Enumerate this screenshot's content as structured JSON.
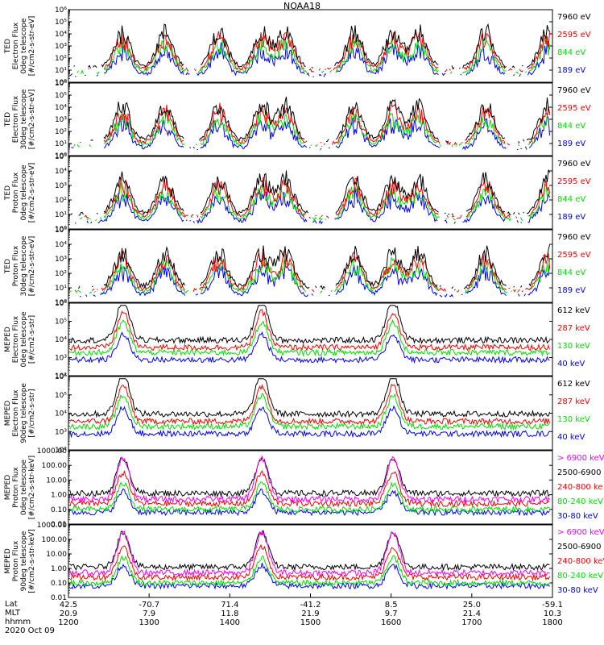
{
  "title": "NOAA18",
  "date_label": "2020 Oct 09",
  "colors": {
    "black": "#000000",
    "red": "#ff0000",
    "green": "#00e000",
    "blue": "#0000ff",
    "magenta": "#ff00ff"
  },
  "chart_data": [
    {
      "type": "line",
      "ylabel": [
        "TED",
        "Electron Flux",
        "0deg telescope",
        "[#/cm2-s-str-eV]"
      ],
      "scale": "log",
      "ylim": [
        1,
        1000000
      ],
      "yticks": [
        "10⁰",
        "10¹",
        "10²",
        "10³",
        "10⁴",
        "10⁵",
        "10⁶"
      ],
      "series": [
        {
          "name": "7960 eV",
          "color": "#000000"
        },
        {
          "name": "2595 eV",
          "color": "#ff0000"
        },
        {
          "name": "844 eV",
          "color": "#00e000"
        },
        {
          "name": "189 eV",
          "color": "#0000ff"
        }
      ]
    },
    {
      "type": "line",
      "ylabel": [
        "TED",
        "Electron Flux",
        "30deg telescope",
        "[#/cm2-s-str-eV]"
      ],
      "scale": "log",
      "ylim": [
        1,
        1000000
      ],
      "yticks": [
        "10⁰",
        "10¹",
        "10²",
        "10³",
        "10⁴",
        "10⁵",
        "10⁶"
      ],
      "series": [
        {
          "name": "7960 eV",
          "color": "#000000"
        },
        {
          "name": "2595 eV",
          "color": "#ff0000"
        },
        {
          "name": "844 eV",
          "color": "#00e000"
        },
        {
          "name": "189 eV",
          "color": "#0000ff"
        }
      ]
    },
    {
      "type": "line",
      "ylabel": [
        "TED",
        "Proton Flux",
        "0deg telescope",
        "[#/cm2-s-str-eV]"
      ],
      "scale": "log",
      "ylim": [
        1,
        100000
      ],
      "yticks": [
        "10⁰",
        "10¹",
        "10²",
        "10³",
        "10⁴",
        "10⁵"
      ],
      "series": [
        {
          "name": "7960 eV",
          "color": "#000000"
        },
        {
          "name": "2595 eV",
          "color": "#ff0000"
        },
        {
          "name": "844 eV",
          "color": "#00e000"
        },
        {
          "name": "189 eV",
          "color": "#0000ff"
        }
      ]
    },
    {
      "type": "line",
      "ylabel": [
        "TED",
        "Proton Flux",
        "30deg telescope",
        "[#/cm2-s-str-eV]"
      ],
      "scale": "log",
      "ylim": [
        1,
        100000
      ],
      "yticks": [
        "10⁰",
        "10¹",
        "10²",
        "10³",
        "10⁴",
        "10⁵"
      ],
      "series": [
        {
          "name": "7960 eV",
          "color": "#000000"
        },
        {
          "name": "2595 eV",
          "color": "#ff0000"
        },
        {
          "name": "844 eV",
          "color": "#00e000"
        },
        {
          "name": "189 eV",
          "color": "#0000ff"
        }
      ]
    },
    {
      "type": "line",
      "ylabel": [
        "MEPED",
        "Electron Flux",
        "0deg telescope",
        "[#/cm2-s-str]"
      ],
      "scale": "log",
      "ylim": [
        100,
        1000000
      ],
      "yticks": [
        "10²",
        "10³",
        "10⁴",
        "10⁵",
        "10⁶"
      ],
      "series": [
        {
          "name": "612 keV",
          "color": "#000000"
        },
        {
          "name": "287 keV",
          "color": "#ff0000"
        },
        {
          "name": "130 keV",
          "color": "#00e000"
        },
        {
          "name": "40 keV",
          "color": "#0000ff"
        }
      ]
    },
    {
      "type": "line",
      "ylabel": [
        "MEPED",
        "Electron Flux",
        "90deg telescope",
        "[#/cm2-s-str]"
      ],
      "scale": "log",
      "ylim": [
        100,
        1000000
      ],
      "yticks": [
        "10²",
        "10³",
        "10⁴",
        "10⁵",
        "10⁶"
      ],
      "series": [
        {
          "name": "612 keV",
          "color": "#000000"
        },
        {
          "name": "287 keV",
          "color": "#ff0000"
        },
        {
          "name": "130 keV",
          "color": "#00e000"
        },
        {
          "name": "40 keV",
          "color": "#0000ff"
        }
      ]
    },
    {
      "type": "line",
      "ylabel": [
        "MEPED",
        "Proton Flux",
        "0deg telescope",
        "[#/cm2-s-str-keV]"
      ],
      "scale": "log",
      "ylim": [
        0.01,
        1000
      ],
      "yticks": [
        "0.01",
        "0.10",
        "1.00",
        "10.00",
        "100.00",
        "1000.00"
      ],
      "series": [
        {
          "name": "> 6900 keV",
          "color": "#ff00ff"
        },
        {
          "name": "2500-6900",
          "color": "#000000"
        },
        {
          "name": "240-800 ke",
          "color": "#ff0000"
        },
        {
          "name": "80-240 keV",
          "color": "#00e000"
        },
        {
          "name": "30-80 keV",
          "color": "#0000ff"
        }
      ]
    },
    {
      "type": "line",
      "ylabel": [
        "MEPED",
        "Proton Flux",
        "90deg telescope",
        "[#/cm2-s-str-keV]"
      ],
      "scale": "log",
      "ylim": [
        0.01,
        1000
      ],
      "yticks": [
        "0.01",
        "0.10",
        "1.00",
        "10.00",
        "100.00",
        "1000.00"
      ],
      "series": [
        {
          "name": "> 6900 keV",
          "color": "#ff00ff"
        },
        {
          "name": "2500-6900",
          "color": "#000000"
        },
        {
          "name": "240-800 keV",
          "color": "#ff0000"
        },
        {
          "name": "80-240 keV",
          "color": "#00e000"
        },
        {
          "name": "30-80 keV",
          "color": "#0000ff"
        }
      ]
    }
  ],
  "x_axis": {
    "row_labels": [
      "Lat",
      "MLT",
      "hhmm"
    ],
    "ticks": [
      {
        "lat": "42.5",
        "mlt": "20.9",
        "hhmm": "1200"
      },
      {
        "lat": "-70.7",
        "mlt": "7.9",
        "hhmm": "1300"
      },
      {
        "lat": "71.4",
        "mlt": "11.8",
        "hhmm": "1400"
      },
      {
        "lat": "-41.2",
        "mlt": "21.9",
        "hhmm": "1500"
      },
      {
        "lat": "8.5",
        "mlt": "9.7",
        "hhmm": "1600"
      },
      {
        "lat": "25.0",
        "mlt": "21.4",
        "hhmm": "1700"
      },
      {
        "lat": "-59.1",
        "mlt": "10.3",
        "hhmm": "1800"
      }
    ]
  }
}
